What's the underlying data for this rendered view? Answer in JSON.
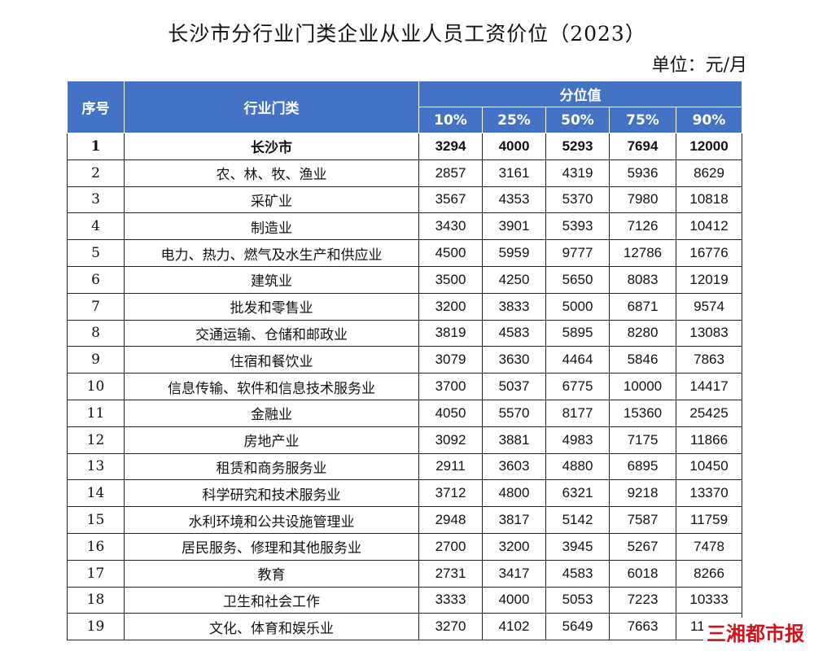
{
  "title": "长沙市分行业门类企业从业人员工资价位（2023）",
  "unit": "单位：元/月",
  "table": {
    "headers": {
      "index": "序号",
      "industry": "行业门类",
      "percentile_group": "分位值",
      "percentiles": [
        "10%",
        "25%",
        "50%",
        "75%",
        "90%"
      ]
    },
    "rows": [
      {
        "index": "1",
        "industry": "长沙市",
        "values": [
          "3294",
          "4000",
          "5293",
          "7694",
          "12000"
        ],
        "bold": true
      },
      {
        "index": "2",
        "industry": "农、林、牧、渔业",
        "values": [
          "2857",
          "3161",
          "4319",
          "5936",
          "8629"
        ]
      },
      {
        "index": "3",
        "industry": "采矿业",
        "values": [
          "3567",
          "4353",
          "5370",
          "7980",
          "10818"
        ]
      },
      {
        "index": "4",
        "industry": "制造业",
        "values": [
          "3430",
          "3901",
          "5393",
          "7126",
          "10412"
        ]
      },
      {
        "index": "5",
        "industry": "电力、热力、燃气及水生产和供应业",
        "values": [
          "4500",
          "5959",
          "9777",
          "12786",
          "16776"
        ]
      },
      {
        "index": "6",
        "industry": "建筑业",
        "values": [
          "3500",
          "4250",
          "5650",
          "8083",
          "12019"
        ]
      },
      {
        "index": "7",
        "industry": "批发和零售业",
        "values": [
          "3200",
          "3833",
          "5000",
          "6871",
          "9574"
        ]
      },
      {
        "index": "8",
        "industry": "交通运输、仓储和邮政业",
        "values": [
          "3819",
          "4583",
          "5895",
          "8280",
          "13083"
        ]
      },
      {
        "index": "9",
        "industry": "住宿和餐饮业",
        "values": [
          "3079",
          "3630",
          "4464",
          "5846",
          "7863"
        ]
      },
      {
        "index": "10",
        "industry": "信息传输、软件和信息技术服务业",
        "values": [
          "3700",
          "5037",
          "6775",
          "10000",
          "14417"
        ]
      },
      {
        "index": "11",
        "industry": "金融业",
        "values": [
          "4050",
          "5570",
          "8177",
          "15360",
          "25425"
        ]
      },
      {
        "index": "12",
        "industry": "房地产业",
        "values": [
          "3092",
          "3881",
          "4983",
          "7175",
          "11866"
        ]
      },
      {
        "index": "13",
        "industry": "租赁和商务服务业",
        "values": [
          "2911",
          "3603",
          "4880",
          "6895",
          "10450"
        ]
      },
      {
        "index": "14",
        "industry": "科学研究和技术服务业",
        "values": [
          "3712",
          "4800",
          "6321",
          "9218",
          "13370"
        ]
      },
      {
        "index": "15",
        "industry": "水利环境和公共设施管理业",
        "values": [
          "2948",
          "3817",
          "5142",
          "7587",
          "11759"
        ]
      },
      {
        "index": "16",
        "industry": "居民服务、修理和其他服务业",
        "values": [
          "2700",
          "3200",
          "3945",
          "5267",
          "7478"
        ]
      },
      {
        "index": "17",
        "industry": "教育",
        "values": [
          "2731",
          "3417",
          "4583",
          "6018",
          "8266"
        ]
      },
      {
        "index": "18",
        "industry": "卫生和社会工作",
        "values": [
          "3333",
          "4000",
          "5053",
          "7223",
          "10333"
        ]
      },
      {
        "index": "19",
        "industry": "文化、体育和娱乐业",
        "values": [
          "3270",
          "4102",
          "5649",
          "7663",
          "11868"
        ]
      }
    ]
  },
  "watermark": "三湘都市报",
  "colors": {
    "header_bg": "#4472c4",
    "header_text": "#ffffff",
    "watermark": "#d0121b"
  }
}
